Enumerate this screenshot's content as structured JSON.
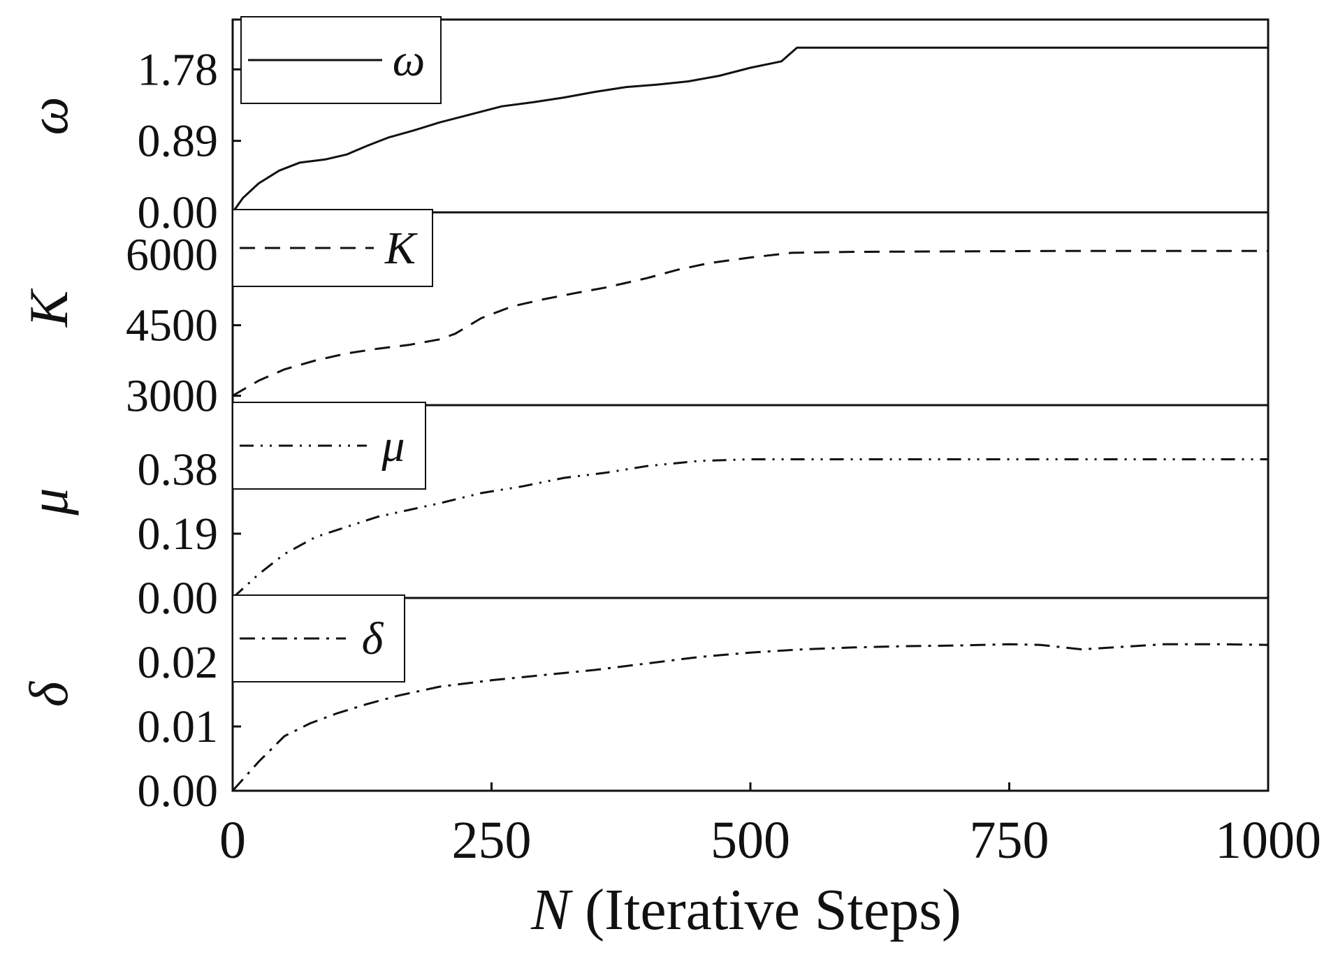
{
  "chart_data": {
    "type": "line",
    "x_axis": {
      "label_symbol": "N",
      "label_text": " (Iterative Steps)",
      "range": [
        0,
        1000
      ],
      "ticks": [
        "0",
        "250",
        "500",
        "750",
        "1000"
      ]
    },
    "panels": [
      {
        "ylabel": "ω",
        "legend": "ω",
        "line_style": "solid",
        "ylim": [
          0,
          2.4
        ],
        "yticks": [
          {
            "v": 0.0,
            "label": "0.00"
          },
          {
            "v": 0.89,
            "label": "0.89"
          },
          {
            "v": 1.78,
            "label": "1.78"
          }
        ],
        "x": [
          0,
          10,
          25,
          45,
          65,
          90,
          110,
          130,
          150,
          175,
          200,
          230,
          260,
          290,
          320,
          350,
          380,
          410,
          440,
          470,
          500,
          530,
          545,
          600,
          700,
          800,
          900,
          1000
        ],
        "y": [
          0.0,
          0.18,
          0.36,
          0.52,
          0.62,
          0.66,
          0.72,
          0.83,
          0.93,
          1.02,
          1.12,
          1.22,
          1.32,
          1.37,
          1.43,
          1.5,
          1.56,
          1.59,
          1.63,
          1.7,
          1.8,
          1.88,
          2.05,
          2.05,
          2.05,
          2.05,
          2.05,
          2.05
        ]
      },
      {
        "ylabel": "K",
        "legend": "K",
        "line_style": "dashed",
        "ylim": [
          2800,
          6900
        ],
        "yticks": [
          {
            "v": 3000,
            "label": "3000"
          },
          {
            "v": 4500,
            "label": "4500"
          },
          {
            "v": 6000,
            "label": "6000"
          }
        ],
        "x": [
          0,
          25,
          50,
          80,
          110,
          140,
          170,
          200,
          215,
          240,
          270,
          300,
          330,
          360,
          400,
          430,
          460,
          500,
          540,
          600,
          700,
          800,
          900,
          1000
        ],
        "y": [
          3000,
          3320,
          3560,
          3750,
          3900,
          4000,
          4080,
          4200,
          4320,
          4650,
          4900,
          5050,
          5180,
          5300,
          5500,
          5680,
          5820,
          5940,
          6040,
          6060,
          6070,
          6080,
          6080,
          6080
        ]
      },
      {
        "ylabel": "μ",
        "legend": "μ",
        "line_style": "dash-dot-dot",
        "ylim": [
          0,
          0.57
        ],
        "yticks": [
          {
            "v": 0.0,
            "label": "0.00"
          },
          {
            "v": 0.19,
            "label": "0.19"
          },
          {
            "v": 0.38,
            "label": "0.38"
          }
        ],
        "x": [
          0,
          25,
          50,
          80,
          110,
          140,
          170,
          200,
          240,
          280,
          320,
          360,
          400,
          450,
          500,
          550,
          600,
          700,
          800,
          900,
          1000
        ],
        "y": [
          0.0,
          0.07,
          0.13,
          0.18,
          0.21,
          0.24,
          0.26,
          0.28,
          0.31,
          0.33,
          0.355,
          0.37,
          0.39,
          0.405,
          0.41,
          0.41,
          0.41,
          0.41,
          0.41,
          0.41,
          0.41
        ]
      },
      {
        "ylabel": "δ",
        "legend": "δ",
        "line_style": "dash-dot",
        "ylim": [
          0,
          0.03
        ],
        "yticks": [
          {
            "v": 0.0,
            "label": "0.00"
          },
          {
            "v": 0.01,
            "label": "0.01"
          },
          {
            "v": 0.02,
            "label": "0.02"
          }
        ],
        "x": [
          0,
          25,
          50,
          75,
          100,
          130,
          160,
          200,
          250,
          300,
          350,
          400,
          450,
          500,
          550,
          600,
          650,
          700,
          750,
          780,
          820,
          870,
          900,
          950,
          1000
        ],
        "y": [
          0.0,
          0.0045,
          0.0085,
          0.0105,
          0.012,
          0.0135,
          0.0148,
          0.0162,
          0.0172,
          0.018,
          0.0188,
          0.0198,
          0.0208,
          0.0215,
          0.022,
          0.0223,
          0.0225,
          0.0226,
          0.0228,
          0.0227,
          0.022,
          0.0225,
          0.0228,
          0.0228,
          0.0227
        ]
      }
    ]
  }
}
